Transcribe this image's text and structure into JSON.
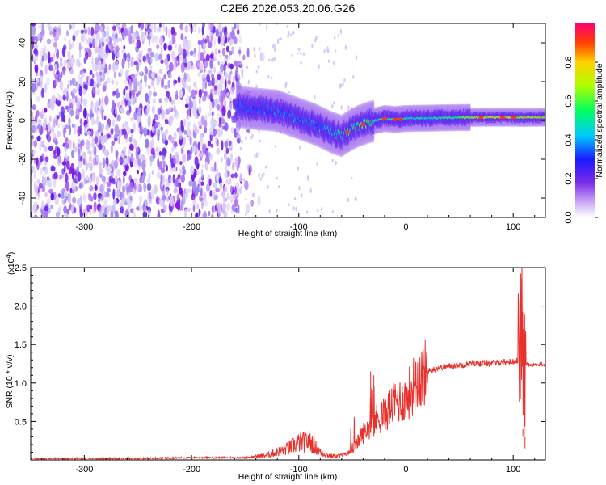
{
  "title": "C2E6.2026.053.20.06.G26",
  "chart_data": [
    {
      "type": "heatmap",
      "xlabel": "Height of straight line (km)",
      "ylabel": "Frequency (Hz)",
      "xlim": [
        -350,
        130
      ],
      "ylim": [
        -50,
        50
      ],
      "xticks": [
        -300,
        -200,
        -100,
        0,
        100
      ],
      "xtick_labels": [
        "-300",
        "-200",
        "-100",
        "0",
        "100"
      ],
      "yticks": [
        -40,
        -20,
        0,
        20,
        40
      ],
      "ytick_labels": [
        "-40",
        "-20",
        "0",
        "20",
        "40"
      ],
      "colorbar": {
        "label": "Normalized spectral amplitude",
        "range": [
          0,
          1
        ],
        "ticks": [
          0.0,
          0.2,
          0.4,
          0.6,
          0.8
        ],
        "tick_labels": [
          "0.0",
          "0.2",
          "0.4",
          "0.6",
          "0.8"
        ]
      },
      "ridge": {
        "x": [
          -155,
          -140,
          -120,
          -100,
          -85,
          -70,
          -60,
          -55,
          -45,
          -35,
          -20,
          -10,
          0,
          20,
          50,
          80,
          100,
          110,
          130
        ],
        "y": [
          7,
          6,
          5,
          1,
          -2,
          -6,
          -8,
          -6,
          -3,
          -1,
          1,
          0.5,
          1,
          1.2,
          1.5,
          1.6,
          1.6,
          1.5,
          1.6
        ],
        "amplitude": [
          0.35,
          0.35,
          0.4,
          0.4,
          0.4,
          0.45,
          0.55,
          0.6,
          0.6,
          0.6,
          0.55,
          0.6,
          0.55,
          0.5,
          0.65,
          0.8,
          0.85,
          0.75,
          0.8
        ]
      },
      "noise_region_x": [
        -350,
        -155
      ]
    },
    {
      "type": "line",
      "xlabel": "Height of straight line (km)",
      "ylabel": "SNR (10 * v/v)",
      "y_multiplier_label": "(x10",
      "y_multiplier_exp": "4",
      "y_multiplier_close": ")",
      "xlim": [
        -350,
        130
      ],
      "ylim": [
        0,
        2.5
      ],
      "xticks": [
        -300,
        -200,
        -100,
        0,
        100
      ],
      "xtick_labels": [
        "-300",
        "-200",
        "-100",
        "0",
        "100"
      ],
      "yticks": [
        0.5,
        1.0,
        1.5,
        2.0,
        2.5
      ],
      "ytick_labels": [
        "0.5",
        "1.0",
        "1.5",
        "2.0",
        "2.5"
      ],
      "line_color": "#e8302c",
      "series": [
        {
          "x": [
            -350,
            -300,
            -250,
            -200,
            -150,
            -130,
            -110,
            -100,
            -90,
            -80,
            -70,
            -60,
            -50,
            -40,
            -30,
            -20,
            -10,
            0,
            10,
            20,
            30,
            40,
            60,
            80,
            100,
            105,
            108,
            110,
            112,
            115,
            130
          ],
          "y": [
            0.02,
            0.02,
            0.02,
            0.03,
            0.03,
            0.06,
            0.15,
            0.22,
            0.25,
            0.1,
            0.05,
            0.05,
            0.12,
            0.35,
            0.5,
            0.6,
            0.75,
            0.8,
            1.05,
            1.15,
            1.2,
            1.22,
            1.25,
            1.26,
            1.28,
            1.3,
            1.8,
            0.9,
            1.25,
            1.24,
            1.24
          ]
        }
      ]
    }
  ]
}
